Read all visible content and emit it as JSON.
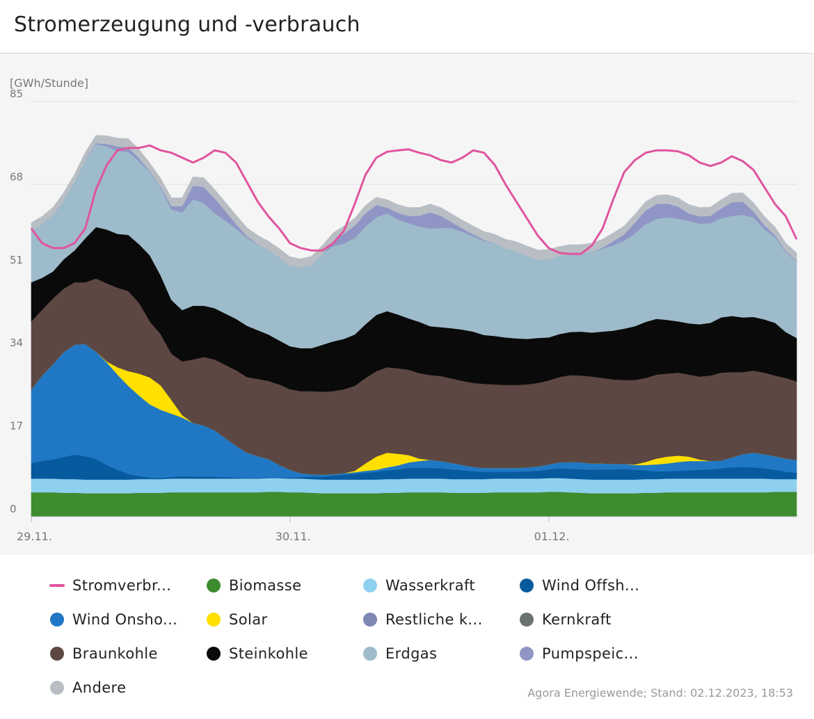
{
  "title": "Stromerzeugung und -verbrauch",
  "source": "Agora Energiewende; Stand: 02.12.2023, 18:53",
  "chart_data": {
    "type": "area",
    "stacked": true,
    "ylabel": "[GWh/Stunde]",
    "ylim": [
      0,
      85
    ],
    "yticks": [
      "85",
      "68",
      "51",
      "34",
      "17",
      "0"
    ],
    "ytick_values": [
      85,
      68,
      51,
      34,
      17,
      0
    ],
    "xticks": [
      "29.11.",
      "30.11.",
      "01.12."
    ],
    "xtick_hours": [
      0,
      24,
      48
    ],
    "hours": 72,
    "grid": true,
    "legend_position": "bottom",
    "series": [
      {
        "key": "biomasse",
        "name": "Biomasse",
        "color": "#3e8c2f",
        "values": [
          5,
          5,
          5,
          4.9,
          4.9,
          4.8,
          4.8,
          4.8,
          4.8,
          4.8,
          4.9,
          4.9,
          4.9,
          5,
          5,
          5,
          5,
          5,
          5,
          5,
          5,
          5,
          5.1,
          5.1,
          5,
          5,
          4.9,
          4.8,
          4.8,
          4.8,
          4.8,
          4.8,
          4.8,
          4.9,
          4.9,
          5,
          5,
          5,
          5,
          4.9,
          4.9,
          4.9,
          4.9,
          5,
          5,
          5,
          5,
          5,
          5.1,
          5.1,
          5,
          4.9,
          4.8,
          4.8,
          4.8,
          4.8,
          4.8,
          4.9,
          4.9,
          5,
          5,
          5,
          5,
          5,
          5,
          5,
          5,
          5,
          5,
          5.1,
          5.1,
          5.1
        ]
      },
      {
        "key": "wasserkraft",
        "name": "Wasserkraft",
        "color": "#8fd0ef",
        "values": [
          2.8,
          2.8,
          2.8,
          2.8,
          2.8,
          2.8,
          2.8,
          2.8,
          2.8,
          2.8,
          2.8,
          2.8,
          2.8,
          2.8,
          2.8,
          2.8,
          2.8,
          2.8,
          2.8,
          2.8,
          2.8,
          2.8,
          2.8,
          2.8,
          2.8,
          2.8,
          2.8,
          2.8,
          2.8,
          2.8,
          2.8,
          2.8,
          2.8,
          2.8,
          2.8,
          2.8,
          2.8,
          2.8,
          2.8,
          2.8,
          2.8,
          2.8,
          2.8,
          2.8,
          2.8,
          2.8,
          2.8,
          2.8,
          2.8,
          2.8,
          2.8,
          2.8,
          2.8,
          2.8,
          2.8,
          2.8,
          2.8,
          2.8,
          2.8,
          2.8,
          2.8,
          2.8,
          2.8,
          2.8,
          2.8,
          2.8,
          2.8,
          2.8,
          2.8,
          2.6,
          2.6,
          2.6
        ]
      },
      {
        "key": "wind_offshore",
        "name": "Wind Offsh...",
        "color": "#075a9e",
        "values": [
          3.2,
          3.6,
          3.9,
          4.5,
          5,
          4.8,
          4.2,
          3,
          2,
          1.2,
          0.6,
          0.3,
          0.2,
          0.3,
          0.5,
          0.4,
          0.4,
          0.4,
          0.3,
          0.2,
          0.1,
          0.1,
          0.1,
          0.1,
          0.2,
          0.3,
          0.5,
          0.6,
          0.8,
          1,
          1.2,
          1.4,
          1.6,
          1.8,
          2,
          2.2,
          2.2,
          2.2,
          2.1,
          2,
          1.8,
          1.6,
          1.5,
          1.4,
          1.4,
          1.4,
          1.5,
          1.6,
          1.8,
          2,
          2,
          2,
          2,
          2.1,
          2.1,
          2.2,
          2,
          1.8,
          1.6,
          1.5,
          1.6,
          1.7,
          1.8,
          1.9,
          2.1,
          2.3,
          2.4,
          2.3,
          2.1,
          1.9,
          1.5,
          1.3
        ]
      },
      {
        "key": "wind_onshore",
        "name": "Wind Onsho...",
        "color": "#2078c4",
        "values": [
          15,
          17.5,
          19.5,
          21.5,
          22.5,
          23,
          22,
          21,
          19.5,
          18,
          16.5,
          15,
          14,
          13,
          12,
          11,
          10.5,
          9.5,
          8,
          6.5,
          5.2,
          4.5,
          3.8,
          2.6,
          1.6,
          0.8,
          0.5,
          0.4,
          0.3,
          0.3,
          0.3,
          0.4,
          0.4,
          0.6,
          0.8,
          1.1,
          1.4,
          1.6,
          1.5,
          1.3,
          1.1,
          0.9,
          0.8,
          0.8,
          0.8,
          0.8,
          0.8,
          0.9,
          1,
          1.2,
          1.4,
          1.4,
          1.3,
          1.2,
          1.1,
          1,
          1,
          1.1,
          1.4,
          1.6,
          1.8,
          1.9,
          1.8,
          1.7,
          1.6,
          2,
          2.6,
          3,
          2.9,
          2.8,
          2.7,
          2.6
        ]
      },
      {
        "key": "solar",
        "name": "Solar",
        "color": "#ffe000",
        "values": [
          0,
          0,
          0,
          0,
          0,
          0,
          0,
          0.2,
          1.5,
          3,
          4.5,
          5.5,
          5,
          2.8,
          0.5,
          0,
          0,
          0,
          0,
          0,
          0,
          0,
          0,
          0,
          0,
          0,
          0,
          0,
          0,
          0,
          0.3,
          1.5,
          2.7,
          3,
          2.4,
          1.5,
          0.5,
          0,
          0,
          0,
          0,
          0,
          0,
          0,
          0,
          0,
          0,
          0,
          0,
          0,
          0,
          0,
          0,
          0,
          0,
          0,
          0.1,
          0.6,
          1.2,
          1.4,
          1.3,
          0.9,
          0.3,
          0,
          0,
          0,
          0,
          0,
          0,
          0,
          0,
          0
        ]
      },
      {
        "key": "restliche_konventionelle",
        "name": "Restliche k...",
        "color": "#7d87b4",
        "values": [
          0,
          0,
          0,
          0,
          0,
          0,
          0,
          0,
          0,
          0,
          0,
          0,
          0,
          0,
          0,
          0,
          0,
          0,
          0,
          0,
          0,
          0,
          0,
          0,
          0,
          0,
          0,
          0,
          0,
          0,
          0,
          0,
          0,
          0,
          0,
          0,
          0,
          0,
          0,
          0,
          0,
          0,
          0,
          0,
          0,
          0,
          0,
          0,
          0,
          0,
          0,
          0,
          0,
          0,
          0,
          0,
          0,
          0,
          0,
          0,
          0,
          0,
          0,
          0,
          0,
          0,
          0,
          0,
          0,
          0,
          0,
          0
        ]
      },
      {
        "key": "kernkraft",
        "name": "Kernkraft",
        "color": "#6b7370",
        "values": [
          0,
          0,
          0,
          0,
          0,
          0,
          0,
          0,
          0,
          0,
          0,
          0,
          0,
          0,
          0,
          0,
          0,
          0,
          0,
          0,
          0,
          0,
          0,
          0,
          0,
          0,
          0,
          0,
          0,
          0,
          0,
          0,
          0,
          0,
          0,
          0,
          0,
          0,
          0,
          0,
          0,
          0,
          0,
          0,
          0,
          0,
          0,
          0,
          0,
          0,
          0,
          0,
          0,
          0,
          0,
          0,
          0,
          0,
          0,
          0,
          0,
          0,
          0,
          0,
          0,
          0,
          0,
          0,
          0,
          0,
          0,
          0
        ]
      },
      {
        "key": "braunkohle",
        "name": "Braunkohle",
        "color": "#5d4743",
        "values": [
          14,
          13.5,
          13.5,
          13,
          12.8,
          12.6,
          15,
          16,
          16.3,
          16.4,
          14.5,
          11.5,
          10.5,
          9.5,
          11,
          13,
          14,
          14.5,
          15,
          15.5,
          15.5,
          15.8,
          16,
          16.5,
          16.5,
          16.8,
          17,
          17,
          17,
          17.2,
          17.4,
          17.5,
          17.5,
          17.5,
          17.5,
          17.5,
          17.5,
          17.4,
          17.4,
          17.3,
          17.2,
          17.2,
          17.2,
          17.1,
          17,
          17,
          17,
          17.1,
          17.2,
          17.5,
          17.8,
          17.8,
          17.8,
          17.5,
          17.3,
          17.2,
          17.3,
          17.2,
          17.2,
          17,
          17,
          16.8,
          17,
          17.5,
          18,
          17.5,
          16.8,
          16.8,
          16.7,
          16.5,
          16.5,
          16.1
        ]
      },
      {
        "key": "steinkohle",
        "name": "Steinkohle",
        "color": "#0a0a0a",
        "values": [
          8,
          6.5,
          5.5,
          6,
          6.5,
          9,
          10.5,
          11,
          11,
          11.5,
          12,
          13.5,
          12,
          11,
          10.5,
          11,
          10.5,
          10.5,
          10.5,
          10.5,
          10.5,
          10,
          9.5,
          9,
          8.8,
          8.8,
          8.8,
          9.6,
          10.2,
          10.3,
          10.5,
          11,
          11.5,
          11.5,
          11,
          10.5,
          10.5,
          10,
          10,
          10.3,
          10.5,
          10.5,
          10,
          9.9,
          9.7,
          9.5,
          9.3,
          9.2,
          8.8,
          8.8,
          8.8,
          9,
          9,
          9.5,
          10,
          10.5,
          11,
          11.5,
          11.4,
          11,
          10.5,
          10.5,
          10.7,
          10.8,
          11.3,
          11.5,
          11.2,
          11,
          10.9,
          10.8,
          9.4,
          8.9
        ]
      },
      {
        "key": "erdgas",
        "name": "Erdgas",
        "color": "#9ebbcb",
        "values": [
          10.5,
          11,
          11.5,
          12,
          14,
          16,
          17,
          17,
          17,
          17,
          17,
          17,
          18,
          18.5,
          20,
          21.8,
          21,
          19.5,
          19,
          18.5,
          18,
          17.5,
          17.3,
          17,
          16.5,
          16.5,
          17,
          18.5,
          19.5,
          19.5,
          19.8,
          20,
          20,
          20,
          19.5,
          19.5,
          19.5,
          20,
          20.3,
          20.5,
          20,
          19.5,
          19.3,
          19,
          18.2,
          17.8,
          17,
          16,
          16,
          16,
          16,
          16,
          16.5,
          17,
          17.5,
          18,
          19,
          20,
          20.5,
          21,
          21,
          21,
          20.6,
          20.4,
          20.3,
          20.5,
          21,
          20.4,
          18.5,
          17.5,
          16.4,
          15.7
        ]
      },
      {
        "key": "pumpspeicher",
        "name": "Pumpspeic...",
        "color": "#8f96c6",
        "values": [
          0,
          0,
          0,
          0,
          0,
          0,
          0.2,
          0.5,
          0.9,
          0.9,
          0.6,
          0.2,
          0.2,
          0.7,
          1.3,
          2.8,
          3.3,
          3,
          2,
          0.9,
          0.3,
          0.1,
          0,
          0,
          0,
          0,
          0,
          0,
          1,
          2,
          2.5,
          2.7,
          2.5,
          1.2,
          1.3,
          1.5,
          2.2,
          3.3,
          2.5,
          1.2,
          0.7,
          0.4,
          0.2,
          0,
          0,
          0,
          0,
          0,
          0,
          0,
          0,
          0,
          0,
          0.2,
          0.8,
          1.3,
          2.2,
          2.8,
          3,
          2.8,
          2.5,
          1.5,
          1.5,
          1.5,
          2,
          2.8,
          2.7,
          1.2,
          0.8,
          0.4,
          0.2,
          0.2
        ]
      },
      {
        "key": "andere",
        "name": "Andere",
        "color": "#b8bec4",
        "values": [
          1.7,
          1.6,
          1.6,
          1.6,
          1.6,
          1.6,
          1.6,
          1.7,
          1.7,
          1.8,
          1.8,
          1.7,
          1.7,
          1.7,
          1.7,
          1.8,
          1.9,
          1.8,
          1.8,
          1.8,
          1.8,
          1.8,
          1.8,
          1.8,
          1.8,
          1.8,
          1.8,
          1.8,
          1.7,
          1.6,
          1.5,
          1.6,
          1.6,
          1.6,
          1.7,
          1.7,
          1.7,
          1.7,
          1.7,
          1.7,
          1.7,
          1.7,
          1.7,
          1.8,
          1.9,
          2,
          2,
          2,
          2,
          1.9,
          1.9,
          1.8,
          1.8,
          1.7,
          1.7,
          1.7,
          1.7,
          1.8,
          1.8,
          1.8,
          1.8,
          1.8,
          1.8,
          1.8,
          1.8,
          1.8,
          1.8,
          1.8,
          1.8,
          1.7,
          1.6,
          1.5
        ]
      }
    ],
    "consumption": {
      "key": "stromverbrauch",
      "name": "Stromverbr...",
      "color": "#e0549e",
      "values": [
        59,
        56,
        55,
        55,
        56,
        59,
        67,
        72,
        75,
        75.5,
        75.5,
        76,
        75,
        74.5,
        73.5,
        72.5,
        73.5,
        75,
        74.5,
        72.5,
        68.5,
        64.5,
        61.5,
        59,
        56,
        55,
        54.5,
        54.5,
        56,
        58.5,
        64,
        70,
        73.5,
        74.7,
        75,
        75.2,
        74.5,
        74,
        73,
        72.5,
        73.5,
        75,
        74.5,
        72,
        68,
        64.5,
        61,
        57.5,
        55,
        54,
        53.8,
        53.8,
        55.5,
        59,
        65,
        70.5,
        73,
        74.5,
        75,
        75,
        74.8,
        74,
        72.5,
        71.8,
        72.5,
        73.8,
        72.8,
        71,
        67.5,
        64,
        61.5,
        56.8
      ]
    },
    "legend_order": [
      "stromverbrauch",
      "biomasse",
      "wasserkraft",
      "wind_offshore",
      "wind_onshore",
      "solar",
      "restliche_konventionelle",
      "kernkraft",
      "braunkohle",
      "steinkohle",
      "erdgas",
      "pumpspeicher",
      "andere"
    ]
  }
}
